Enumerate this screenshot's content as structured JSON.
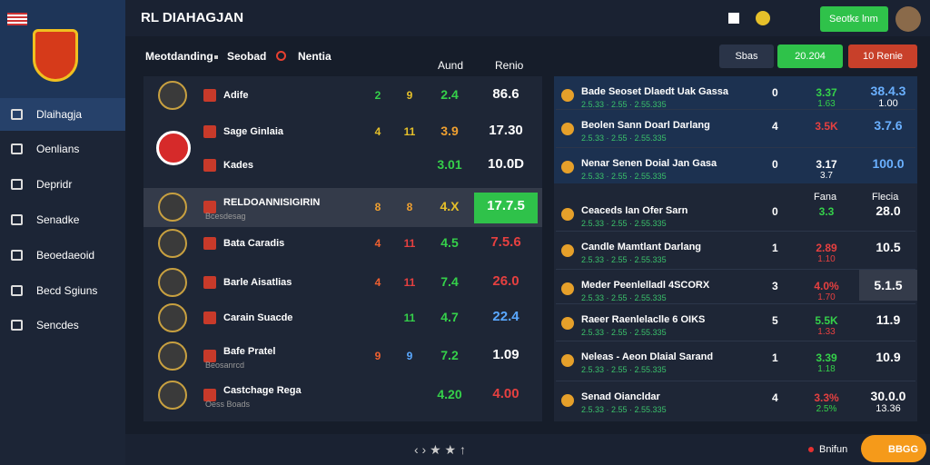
{
  "header": {
    "title": "RL DIAHAGJAN",
    "button": "Seotkε lnm"
  },
  "sidebar": {
    "items": [
      "Dlaihagja",
      "Oenlians",
      "Depridr",
      "Senadke",
      "Beoedaeoid",
      "Becd Sgiuns",
      "Sencdes"
    ]
  },
  "filters": {
    "sort": "Meotdanding",
    "mid": "Seobad",
    "last": "Nentia",
    "col1": "Aund",
    "col2": "Renio"
  },
  "actions": {
    "a": "Sbas",
    "b": "20.204",
    "c": "10 Renie"
  },
  "left_rows": [
    {
      "name": "Adife",
      "sub": "",
      "n1": "2",
      "n2": "9",
      "odds": "2.4",
      "value": "86.6",
      "c1": "#35d14a",
      "c2": "#e6c02a",
      "co": "#35d14a",
      "cv": "#ffffff"
    },
    {
      "name": "Sage Ginlaia",
      "sub": "",
      "n1": "4",
      "n2": "11",
      "odds": "3.9",
      "value": "17.30",
      "c1": "#e6c02a",
      "c2": "#e6c02a",
      "co": "#f0a030",
      "cv": "#ffffff"
    },
    {
      "name": "Kades",
      "sub": "",
      "n1": "",
      "n2": "",
      "odds": "3.01",
      "value": "10.0D",
      "c1": "#fff",
      "c2": "#fff",
      "co": "#35d14a",
      "cv": "#ffffff"
    },
    {
      "name": "RELDOANNISIGIRIN",
      "sub": "Bcesdesag",
      "n1": "8",
      "n2": "8",
      "odds": "4.X",
      "value": "17.7.5",
      "c1": "#f0a030",
      "c2": "#f0a030",
      "co": "#e6c02a",
      "cv": "#ffffff"
    },
    {
      "name": "Bata Caradis",
      "sub": "",
      "n1": "4",
      "n2": "11",
      "odds": "4.5",
      "value": "7.5.6",
      "c1": "#f06030",
      "c2": "#e64040",
      "co": "#35d14a",
      "cv": "#e64040"
    },
    {
      "name": "Barle Aisatlias",
      "sub": "",
      "n1": "4",
      "n2": "11",
      "odds": "7.4",
      "value": "26.0",
      "c1": "#f06030",
      "c2": "#e64040",
      "co": "#35d14a",
      "cv": "#e64040"
    },
    {
      "name": "Carain Suacde",
      "sub": "",
      "n1": "",
      "n2": "11",
      "odds": "4.7",
      "value": "22.4",
      "c1": "#fff",
      "c2": "#35d14a",
      "co": "#35d14a",
      "cv": "#5aa8ff"
    },
    {
      "name": "Bafe Pratel",
      "sub": "Beosanrcd",
      "n1": "9",
      "n2": "9",
      "odds": "7.2",
      "value": "1.09",
      "c1": "#f06030",
      "c2": "#5aa8ff",
      "co": "#35d14a",
      "cv": "#ffffff"
    },
    {
      "name": "Castchage Rega",
      "sub": "Oess Boads",
      "n1": "",
      "n2": "",
      "odds": "4.20",
      "value": "4.00",
      "c1": "#fff",
      "c2": "#fff",
      "co": "#35d14a",
      "cv": "#e64040"
    }
  ],
  "right_headers": {
    "a": "Fana",
    "b": "Flecia"
  },
  "right_rows": [
    {
      "name": "Bade Seoset Dlaedt Uak Gassa",
      "sub": "2.5.33 · 2.55 · 2.55.335",
      "num": "0",
      "top": "3.37",
      "bottom": "1.63",
      "value": "38.4.3",
      "small": "1.00",
      "ct": "#35d14a",
      "cb": "#35d14a"
    },
    {
      "name": "Beolen Sann Doarl Darlang",
      "sub": "2.5.33 · 2.55 · 2.55.335",
      "num": "4",
      "top": "3.5K",
      "bottom": "",
      "value": "3.7.6",
      "small": "",
      "ct": "#e64040",
      "cb": "#e64040"
    },
    {
      "name": "Nenar Senen Doial Jan Gasa",
      "sub": "2.5.33 · 2.55 · 2.55.335",
      "num": "0",
      "top": "3.17",
      "bottom": "3.7",
      "value": "100.0",
      "small": "",
      "ct": "#ffffff",
      "cb": "#ffffff"
    },
    {
      "name": "Ceaceds Ian Ofer Sarn",
      "sub": "2.5.33 · 2.55 · 2.55.335",
      "num": "0",
      "top": "3.3",
      "bottom": "",
      "value": "28.0",
      "small": "",
      "ct": "#35d14a",
      "cb": "#35d14a"
    },
    {
      "name": "Candle Mamtlant Darlang",
      "sub": "2.5.33 · 2.55 · 2.55.335",
      "num": "1",
      "top": "2.89",
      "bottom": "1.10",
      "value": "10.5",
      "small": "",
      "ct": "#e64040",
      "cb": "#e64040"
    },
    {
      "name": "Meder Peenlelladl 4SCORX",
      "sub": "2.5.33 · 2.55 · 2.55.335",
      "num": "3",
      "top": "4.0%",
      "bottom": "1.70",
      "value": "5.1.5",
      "small": "",
      "ct": "#e64040",
      "cb": "#e64040"
    },
    {
      "name": "Raeer Raenlelaclle 6 OIKS",
      "sub": "2.5.33 · 2.55 · 2.55.335",
      "num": "5",
      "top": "5.5K",
      "bottom": "1.33",
      "value": "11.9",
      "small": "",
      "ct": "#35d14a",
      "cb": "#e64040"
    },
    {
      "name": "Neleas - Aeon Dlaial Sarand",
      "sub": "2.5.33 · 2.55 · 2.55.335",
      "num": "1",
      "top": "3.39",
      "bottom": "1.18",
      "value": "10.9",
      "small": "",
      "ct": "#35d14a",
      "cb": "#35d14a"
    },
    {
      "name": "Senad Oiancldar",
      "sub": "2.5.33 · 2.55 · 2.55.335",
      "num": "4",
      "top": "3.3%",
      "bottom": "2.5%",
      "value": "30.0.0",
      "small": "13.36",
      "ct": "#e64040",
      "cb": "#35d14a"
    }
  ],
  "footer": {
    "status": "Bnifun",
    "button": "BBGG"
  }
}
